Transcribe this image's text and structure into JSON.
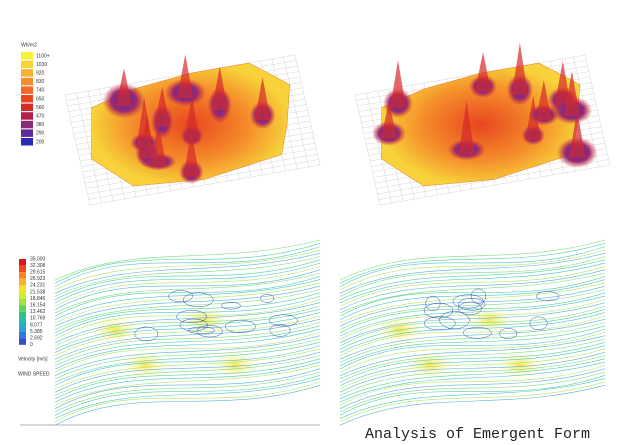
{
  "radiation_legend": {
    "unit": "Wh/m2",
    "labels": [
      "1100+",
      "1030",
      "920",
      "830",
      "740",
      "650",
      "560",
      "470",
      "380",
      "290",
      "200"
    ],
    "colors": [
      "#f7f03a",
      "#f9d23a",
      "#f7b233",
      "#f58f2b",
      "#f06a24",
      "#e8461f",
      "#d42a2a",
      "#b3204a",
      "#8a2a7a",
      "#5a2a9e",
      "#2a2ab8"
    ]
  },
  "wind_legend": {
    "labels": [
      "35.000",
      "32.308",
      "29.615",
      "26.923",
      "24.231",
      "21.538",
      "18.846",
      "16.154",
      "13.462",
      "10.769",
      "8.077",
      "5.385",
      "2.692",
      "0"
    ],
    "colors": [
      "#d7191c",
      "#f04a1c",
      "#f7861e",
      "#fbb427",
      "#f7e22a",
      "#d4ee2e",
      "#9fe23a",
      "#5fd35a",
      "#2fc58a",
      "#22b8b8",
      "#2aa3d8",
      "#2e7ad8",
      "#3050c8",
      "#2a2aa8"
    ],
    "quantity": "Velocity [m/s]",
    "caption": "WIND SPEED"
  },
  "title": "Analysis of Emergent  Form"
}
